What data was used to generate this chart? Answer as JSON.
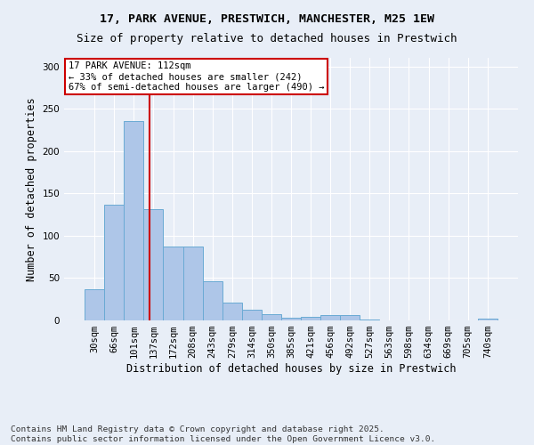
{
  "title": "17, PARK AVENUE, PRESTWICH, MANCHESTER, M25 1EW",
  "subtitle": "Size of property relative to detached houses in Prestwich",
  "xlabel": "Distribution of detached houses by size in Prestwich",
  "ylabel": "Number of detached properties",
  "footnote1": "Contains HM Land Registry data © Crown copyright and database right 2025.",
  "footnote2": "Contains public sector information licensed under the Open Government Licence v3.0.",
  "categories": [
    "30sqm",
    "66sqm",
    "101sqm",
    "137sqm",
    "172sqm",
    "208sqm",
    "243sqm",
    "279sqm",
    "314sqm",
    "350sqm",
    "385sqm",
    "421sqm",
    "456sqm",
    "492sqm",
    "527sqm",
    "563sqm",
    "598sqm",
    "634sqm",
    "669sqm",
    "705sqm",
    "740sqm"
  ],
  "values": [
    37,
    137,
    235,
    131,
    87,
    87,
    46,
    21,
    13,
    7,
    3,
    4,
    6,
    6,
    1,
    0,
    0,
    0,
    0,
    0,
    2
  ],
  "bar_color": "#aec6e8",
  "bar_edge_color": "#6aaad4",
  "bg_color": "#e8eef7",
  "grid_color": "#ffffff",
  "redline_label": "17 PARK AVENUE: 112sqm",
  "annotation_line1": "← 33% of detached houses are smaller (242)",
  "annotation_line2": "67% of semi-detached houses are larger (490) →",
  "annotation_box_color": "#ffffff",
  "annotation_box_edge": "#cc0000",
  "redline_color": "#cc0000",
  "ylim": [
    0,
    310
  ],
  "yticks": [
    0,
    50,
    100,
    150,
    200,
    250,
    300
  ],
  "title_fontsize": 9.5,
  "subtitle_fontsize": 9,
  "label_fontsize": 8.5,
  "tick_fontsize": 7.5,
  "annotation_fontsize": 7.5,
  "footnote_fontsize": 6.8
}
